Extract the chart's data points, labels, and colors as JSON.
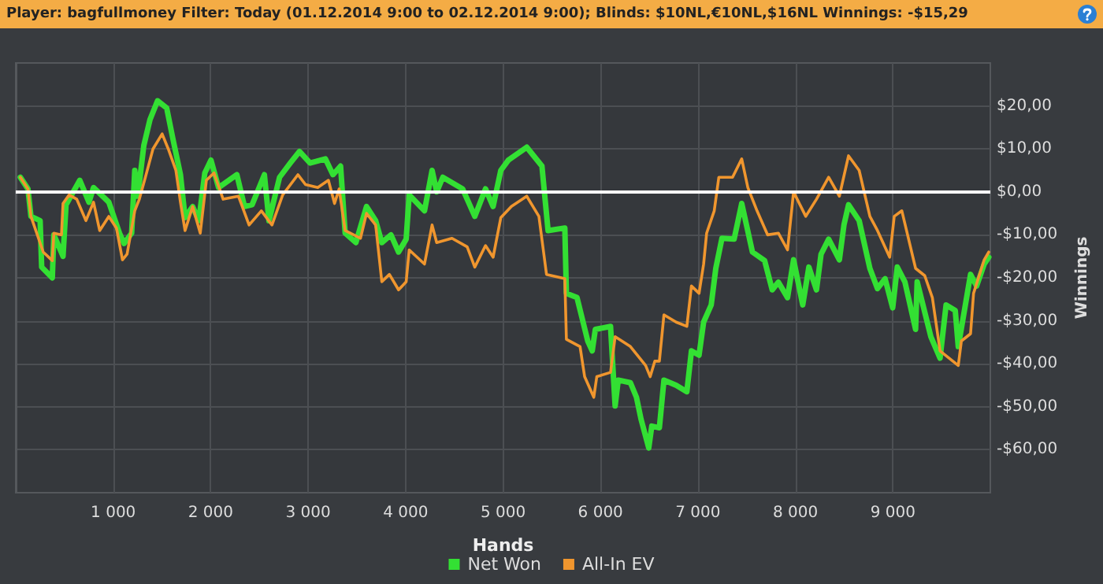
{
  "chart_data": {
    "type": "line",
    "title": "Player: bagfullmoney Filter: Today (01.12.2014 9:00 to 02.12.2014 9:00); Blinds: $10NL,€10NL,$16NL Winnings: -$15,29",
    "xlabel": "Hands",
    "ylabel": "Winnings",
    "xlim": [
      0,
      10000
    ],
    "xticks": [
      {
        "value": 1000,
        "label": "1 000"
      },
      {
        "value": 2000,
        "label": "2 000"
      },
      {
        "value": 3000,
        "label": "3 000"
      },
      {
        "value": 4000,
        "label": "4 000"
      },
      {
        "value": 5000,
        "label": "5 000"
      },
      {
        "value": 6000,
        "label": "6 000"
      },
      {
        "value": 7000,
        "label": "7 000"
      },
      {
        "value": 8000,
        "label": "8 000"
      },
      {
        "value": 9000,
        "label": "9 000"
      }
    ],
    "ylim": [
      -70,
      30
    ],
    "yticks": [
      {
        "value": -60,
        "label": "-$60,00"
      },
      {
        "value": -50,
        "label": "-$50,00"
      },
      {
        "value": -40,
        "label": "-$40,00"
      },
      {
        "value": -30,
        "label": "-$30,00"
      },
      {
        "value": -20,
        "label": "-$20,00"
      },
      {
        "value": -10,
        "label": "-$10,00"
      },
      {
        "value": 0,
        "label": "$0,00"
      },
      {
        "value": 10,
        "label": "$10,00"
      },
      {
        "value": 20,
        "label": "$20,00"
      }
    ],
    "grid": true,
    "legend": "bottom",
    "marker": "none",
    "line_style": "solid",
    "ref_lines": [
      {
        "axis": "y",
        "value": 0,
        "color": "#ffffff"
      }
    ],
    "series": [
      {
        "name": "Net Won",
        "color": "#33e033",
        "x": [
          47,
          125,
          156,
          250,
          266,
          375,
          391,
          485,
          516,
          657,
          751,
          798,
          955,
          1064,
          1111,
          1189,
          1221,
          1252,
          1314,
          1377,
          1455,
          1549,
          1612,
          1690,
          1737,
          1815,
          1878,
          1940,
          2003,
          2081,
          2269,
          2347,
          2425,
          2551,
          2598,
          2707,
          2817,
          2911,
          3020,
          3177,
          3255,
          3333,
          3380,
          3490,
          3599,
          3693,
          3756,
          3850,
          3928,
          4006,
          4037,
          4194,
          4272,
          4319,
          4382,
          4585,
          4710,
          4820,
          4898,
          4977,
          5055,
          5243,
          5399,
          5462,
          5634,
          5650,
          5759,
          5869,
          5915,
          5947,
          6103,
          6150,
          6182,
          6307,
          6369,
          6416,
          6495,
          6526,
          6604,
          6651,
          6776,
          6886,
          6933,
          7011,
          7058,
          7136,
          7183,
          7246,
          7371,
          7449,
          7559,
          7684,
          7762,
          7825,
          7919,
          7981,
          8075,
          8138,
          8216,
          8263,
          8341,
          8451,
          8498,
          8545,
          8654,
          8764,
          8842,
          8920,
          8998,
          9045,
          9124,
          9233,
          9249,
          9390,
          9484,
          9546,
          9640,
          9671,
          9797,
          9859,
          9937,
          9984
        ],
        "values": [
          3.4,
          0.7,
          -5.7,
          -6.7,
          -17.5,
          -20,
          -10,
          -15,
          -3,
          2.7,
          -2.4,
          1,
          -2.4,
          -9.6,
          -12,
          -9.6,
          5,
          -1,
          10.8,
          16.8,
          21.2,
          19.5,
          12.4,
          4,
          -6,
          -3.4,
          -6.7,
          4.4,
          7.4,
          1,
          4,
          -3.4,
          -3,
          4,
          -6.7,
          3.4,
          6.7,
          9.4,
          6.7,
          7.7,
          4,
          6,
          -9.6,
          -11.8,
          -3.4,
          -6.7,
          -11.8,
          -10,
          -14,
          -11,
          -0.7,
          -4.4,
          5,
          0,
          3.4,
          0.7,
          -5.7,
          0.7,
          -3.4,
          5,
          7.4,
          10.4,
          6,
          -9,
          -8.4,
          -23.6,
          -24.6,
          -34.7,
          -37,
          -32,
          -31.3,
          -49.8,
          -43.8,
          -44.4,
          -47.8,
          -52.9,
          -59.6,
          -54.5,
          -54.9,
          -43.8,
          -45,
          -46.5,
          -37,
          -38,
          -30.3,
          -26.3,
          -17.8,
          -10.8,
          -11,
          -2.7,
          -14,
          -16,
          -22.8,
          -21,
          -24.6,
          -15.8,
          -26.3,
          -17.5,
          -22.8,
          -14.5,
          -11,
          -15.8,
          -7.7,
          -3,
          -6.7,
          -17.8,
          -22.5,
          -20.2,
          -27,
          -17.5,
          -21,
          -32,
          -20.9,
          -33.7,
          -38.7,
          -26.3,
          -27.6,
          -36,
          -19.2,
          -21.9,
          -16.8,
          -15.2
        ]
      },
      {
        "name": "All-In EV",
        "color": "#f0962e",
        "x": [
          47,
          125,
          156,
          282,
          375,
          391,
          469,
          485,
          548,
          626,
          720,
          798,
          861,
          955,
          1033,
          1095,
          1142,
          1221,
          1268,
          1330,
          1408,
          1502,
          1565,
          1643,
          1690,
          1737,
          1815,
          1893,
          1956,
          2034,
          2128,
          2285,
          2394,
          2520,
          2629,
          2739,
          2895,
          2973,
          3099,
          3208,
          3271,
          3318,
          3380,
          3537,
          3599,
          3693,
          3756,
          3834,
          3928,
          4006,
          4037,
          4194,
          4272,
          4319,
          4476,
          4632,
          4710,
          4820,
          4898,
          4977,
          5086,
          5243,
          5368,
          5446,
          5634,
          5650,
          5790,
          5837,
          5931,
          5962,
          6103,
          6150,
          6307,
          6463,
          6510,
          6557,
          6604,
          6651,
          6776,
          6886,
          6933,
          7011,
          7058,
          7089,
          7167,
          7214,
          7355,
          7449,
          7512,
          7606,
          7715,
          7825,
          7919,
          7981,
          8106,
          8216,
          8341,
          8451,
          8545,
          8654,
          8764,
          8842,
          8967,
          9014,
          9092,
          9233,
          9327,
          9405,
          9484,
          9671,
          9703,
          9797,
          9828,
          9937,
          9984
        ],
        "values": [
          3.4,
          0.7,
          -5.7,
          -14,
          -16,
          -9.6,
          -10,
          -2.7,
          -0.7,
          -1.7,
          -6.7,
          -2.4,
          -9,
          -5.7,
          -8.4,
          -15.8,
          -14.5,
          -4.4,
          -1.7,
          3.4,
          10,
          13.5,
          10,
          5,
          -2.4,
          -9,
          -3.4,
          -9.6,
          2.7,
          4.4,
          -1.7,
          -1,
          -7.7,
          -4.4,
          -7.7,
          -0.7,
          4,
          1.7,
          1,
          2.7,
          -2.7,
          0.7,
          -9,
          -10.8,
          -5,
          -7.7,
          -20.9,
          -19.2,
          -22.8,
          -20.9,
          -13.5,
          -16.8,
          -7.7,
          -11.8,
          -10.8,
          -12.8,
          -17.5,
          -12.5,
          -15.2,
          -6,
          -3.4,
          -1,
          -5.7,
          -19.2,
          -20.2,
          -34.3,
          -36,
          -43,
          -47.8,
          -43,
          -42,
          -33.7,
          -36,
          -40.4,
          -43,
          -39.4,
          -39.4,
          -28.6,
          -30.3,
          -31.3,
          -21.9,
          -23.6,
          -16.8,
          -9.6,
          -4.4,
          3.4,
          3.4,
          7.7,
          1,
          -4.4,
          -10,
          -9.6,
          -13.5,
          0,
          -5.7,
          -1.7,
          3.4,
          -1,
          8.4,
          5,
          -5.7,
          -9,
          -15.2,
          -5.7,
          -4.4,
          -17.8,
          -19.5,
          -24.6,
          -37,
          -40.4,
          -34.7,
          -33,
          -23.6,
          -15.8,
          -14
        ]
      }
    ]
  }
}
